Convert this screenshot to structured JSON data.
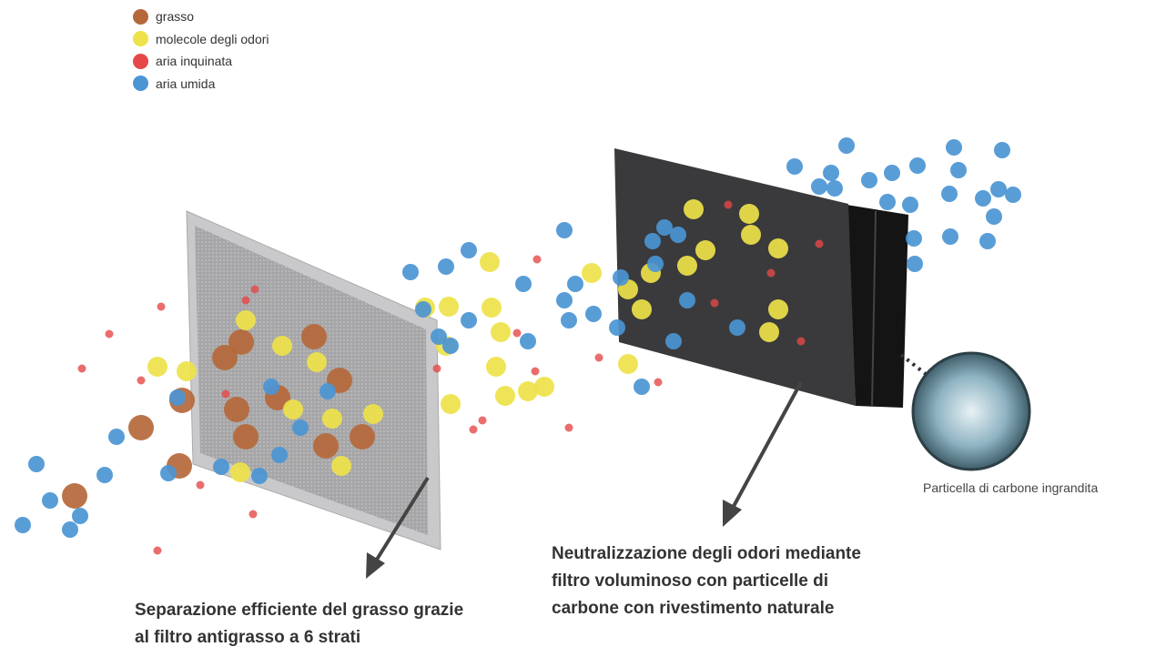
{
  "legend": {
    "items": [
      {
        "label": "grasso",
        "color": "#b5683a"
      },
      {
        "label": "molecole degli odori",
        "color": "#eee24a"
      },
      {
        "label": "aria inquinata",
        "color": "#e54848"
      },
      {
        "label": "aria umida",
        "color": "#4b95d4"
      }
    ]
  },
  "captions": {
    "grease_filter": [
      "Separazione efficiente del grasso grazie",
      "al filtro antigrasso a 6 strati"
    ],
    "carbon_filter": [
      "Neutralizzazione degli odori mediante",
      "filtro voluminoso con particelle di",
      "carbone con rivestimento naturale"
    ],
    "carbon_particle": "Particella di carbone ingrandita"
  }
}
